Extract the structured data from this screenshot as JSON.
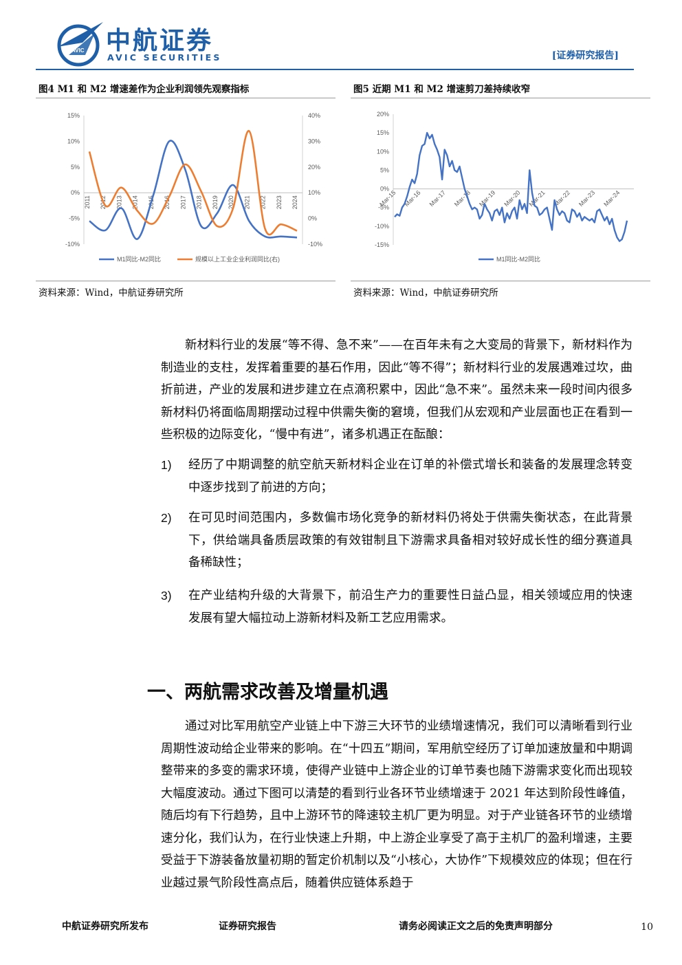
{
  "header": {
    "logo_text": "中航证券",
    "logo_sub": "AVIC SECURITIES",
    "logo_emblem_text": "AVIC",
    "report_tag": "[证券研究报告]"
  },
  "figure4": {
    "caption": "图4 M1 和 M2 增速差作为企业利润领先观察指标",
    "source": "资料来源：Wind，中航证券研究所",
    "chart_data": {
      "type": "line",
      "x": [
        "2011",
        "2012",
        "2013",
        "2014",
        "2015",
        "2016",
        "2017",
        "2018",
        "2019",
        "2020",
        "2021",
        "2022",
        "2023",
        "2024"
      ],
      "y_left_ticks": [
        "15%",
        "10%",
        "5%",
        "0%",
        "-5%",
        "-10%"
      ],
      "y_right_ticks": [
        "40%",
        "30%",
        "20%",
        "10%",
        "0%",
        "-10%"
      ],
      "ylim_left": [
        -10,
        15
      ],
      "ylim_right": [
        -10,
        40
      ],
      "series": [
        {
          "name": "M1同比-M2同比",
          "axis": "left",
          "color": "#4472c4",
          "values": [
            -5.5,
            -7.3,
            -3.0,
            -9.0,
            -0.5,
            10.0,
            4.5,
            -6.5,
            -4.0,
            1.5,
            -5.5,
            -8.5,
            -8.5,
            -8.7
          ]
        },
        {
          "name": "规模以上工业企业利润同比(右)",
          "axis": "right",
          "color": "#ed7d31",
          "values": [
            26.0,
            5.0,
            12.0,
            3.0,
            -2.0,
            8.5,
            21.0,
            10.5,
            -3.0,
            4.0,
            34.0,
            -4.0,
            -2.3,
            -4.8
          ]
        }
      ],
      "legend_position": "bottom"
    }
  },
  "figure5": {
    "caption": "图5 近期 M1 和 M2 增速剪刀差持续收窄",
    "source": "资料来源：Wind，中航证券研究所",
    "chart_data": {
      "type": "line",
      "x_ticks": [
        "Mar-15",
        "Mar-16",
        "Mar-17",
        "Mar-18",
        "Mar-19",
        "Mar-20",
        "Mar-21",
        "Mar-22",
        "Mar-23",
        "Mar-24"
      ],
      "y_ticks": [
        "20%",
        "15%",
        "10%",
        "5%",
        "0%",
        "-5%",
        "-10%",
        "-15%"
      ],
      "ylim": [
        -15,
        20
      ],
      "series": [
        {
          "name": "M1同比-M2同比",
          "color": "#4472c4",
          "values": [
            -7.5,
            -6.8,
            -7.2,
            -5.0,
            -4.0,
            -2.0,
            0.5,
            2.5,
            1.5,
            4.0,
            9.0,
            11.5,
            12.0,
            15.0,
            13.5,
            14.5,
            12.0,
            10.5,
            8.5,
            2.5,
            10.5,
            9.0,
            6.0,
            7.5,
            5.0,
            4.5,
            6.0,
            3.0,
            0.0,
            -2.0,
            -4.0,
            -5.5,
            -5.0,
            -5.5,
            -8.0,
            -7.0,
            -4.0,
            -5.5,
            -6.5,
            -8.5,
            -6.0,
            -5.5,
            -7.0,
            -5.0,
            -9.0,
            -6.5,
            -8.0,
            -6.0,
            -5.0,
            -8.0,
            -3.0,
            -5.5,
            -4.0,
            -6.5,
            5.0,
            -1.0,
            -4.5,
            -5.0,
            -7.0,
            -6.5,
            -5.5,
            -5.0,
            -8.0,
            -11.0,
            -3.0,
            -5.5,
            -7.0,
            -6.0,
            -6.5,
            -8.5,
            -9.0,
            -5.5,
            -6.0,
            -7.5,
            -6.5,
            -8.5,
            -7.5,
            -8.0,
            -8.5,
            -8.0,
            -9.0,
            -6.0,
            -5.5,
            -7.0,
            -8.5,
            -7.5,
            -9.5,
            -8.0,
            -11.0,
            -13.0,
            -14.0,
            -13.5,
            -11.5,
            -8.5
          ]
        }
      ],
      "legend_position": "bottom"
    }
  },
  "body": {
    "para1": "新材料行业的发展“等不得、急不来”——在百年未有之大变局的背景下，新材料作为制造业的支柱，发挥着重要的基石作用，因此“等不得”；新材料行业的发展遇难过坎，曲折前进，产业的发展和进步建立在点滴积累中，因此“急不来”。虽然未来一段时间内很多新材料仍将面临周期摆动过程中供需失衡的窘境，但我们从宏观和产业层面也正在看到一些积极的边际变化，“慢中有进”，诸多机遇正在酝酿：",
    "items": [
      {
        "num": "1)",
        "text": "经历了中期调整的航空航天新材料企业在订单的补偿式增长和装备的发展理念转变中逐步找到了前进的方向；"
      },
      {
        "num": "2)",
        "text": "在可见时间范围内，多数偏市场化竞争的新材料仍将处于供需失衡状态，在此背景下，供给端具备质层政策的有效钳制且下游需求具备相对较好成长性的细分赛道具备稀缺性；"
      },
      {
        "num": "3)",
        "text": "在产业结构升级的大背景下，前沿生产力的重要性日益凸显，相关领域应用的快速发展有望大幅拉动上游新材料及新工艺应用需求。"
      }
    ],
    "section_heading": "一、两航需求改善及增量机遇",
    "para2": "通过对比军用航空产业链上中下游三大环节的业绩增速情况，我们可以清晰看到行业周期性波动给企业带来的影响。在“十四五”期间，军用航空经历了订单加速放量和中期调整带来的多变的需求环境，使得产业链中上游企业的订单节奏也随下游需求变化而出现较大幅度波动。通过下图可以清楚的看到行业各环节业绩增速于 2021 年达到阶段性峰值，随后均有下行趋势，且中上游环节的降速较主机厂更为明显。对于产业链各环节的业绩增速分化，我们认为，在行业快速上升期，中上游企业享受了高于主机厂的盈利增速，主要受益于下游装备放量初期的暂定价机制以及“小核心，大协作”下规模效应的体现；但在行业越过景气阶段性高点后，随着供应链体系趋于"
  },
  "footer": {
    "left": "中航证券研究所发布",
    "middle": "证券研究报告",
    "right": "请务必阅读正文之后的免责声明部分",
    "page": "10"
  }
}
